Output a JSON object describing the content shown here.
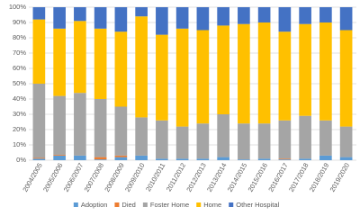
{
  "chart_data": {
    "type": "stacked-bar-100",
    "categories": [
      "2004/2005",
      "2005/2006",
      "2006/2007",
      "2007/2008",
      "2008/2009",
      "2009/2010",
      "2010/2011",
      "2011/2012",
      "2012/2013",
      "2013/2014",
      "2014/2015",
      "2015/2016",
      "2016/2017",
      "2017/2018",
      "2018/2019",
      "2019/2020"
    ],
    "series": [
      {
        "name": "Adoption",
        "color": "#5b9bd5",
        "values": [
          1,
          3,
          3,
          0.5,
          2,
          3,
          1,
          1,
          1,
          2,
          0.5,
          1,
          0.5,
          1,
          3,
          2
        ]
      },
      {
        "name": "Died",
        "color": "#ed7d31",
        "values": [
          0.5,
          0.5,
          0,
          1.5,
          1,
          0,
          0,
          0,
          0,
          0,
          0,
          0,
          0.5,
          0,
          0,
          0
        ]
      },
      {
        "name": "Foster Home",
        "color": "#a5a5a5",
        "values": [
          48.5,
          38.5,
          41,
          38,
          32,
          25,
          25,
          21,
          23,
          28,
          23.5,
          23,
          25,
          28,
          23,
          20
        ]
      },
      {
        "name": "Home",
        "color": "#ffc000",
        "values": [
          42,
          44,
          47,
          46,
          49,
          66,
          56,
          64,
          61,
          58,
          65,
          66,
          58,
          60,
          64,
          63
        ]
      },
      {
        "name": "Other Hospital",
        "color": "#4472c4",
        "values": [
          8,
          14,
          9,
          14,
          16,
          6,
          18,
          14,
          15,
          12,
          11,
          10,
          16,
          11,
          10,
          15
        ]
      }
    ],
    "ylim": [
      0,
      100
    ],
    "yticks": [
      {
        "value": 0,
        "label": "0%"
      },
      {
        "value": 10,
        "label": "10%"
      },
      {
        "value": 20,
        "label": "20%"
      },
      {
        "value": 30,
        "label": "30%"
      },
      {
        "value": 40,
        "label": "40%"
      },
      {
        "value": 50,
        "label": "50%"
      },
      {
        "value": 60,
        "label": "60%"
      },
      {
        "value": 70,
        "label": "70%"
      },
      {
        "value": 80,
        "label": "80%"
      },
      {
        "value": 90,
        "label": "90%"
      },
      {
        "value": 100,
        "label": "100%"
      }
    ],
    "grid": true,
    "legend": "bottom"
  }
}
